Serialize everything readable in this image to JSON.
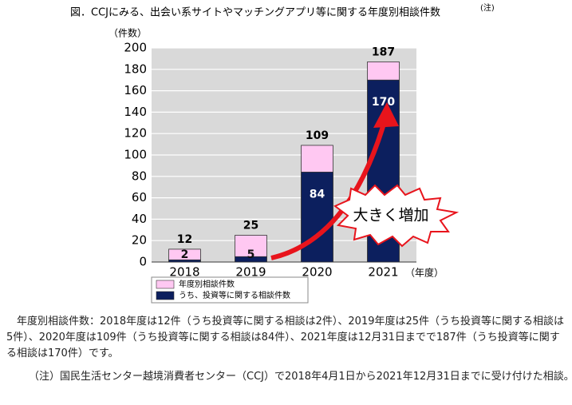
{
  "chart_data": {
    "type": "bar",
    "title": "図．CCJにみる、出会い系サイトやマッチングアプリ等に関する年度別相談件数",
    "title_note": "(注)",
    "y_label": "（件数）",
    "x_label": "（年度）",
    "categories": [
      "2018",
      "2019",
      "2020",
      "2021"
    ],
    "series": [
      {
        "name": "年度別相談件数",
        "color": "#ffc8f2",
        "values": [
          12,
          25,
          109,
          187
        ]
      },
      {
        "name": "うち、投資等に関する相談件数",
        "color": "#0c1f5e",
        "values": [
          2,
          5,
          84,
          170
        ]
      }
    ],
    "overlap": true,
    "ylim": [
      0,
      200
    ],
    "yticks": [
      0,
      20,
      40,
      60,
      80,
      100,
      120,
      140,
      160,
      180,
      200
    ],
    "grid": true,
    "annotation": "大きく増加",
    "description": "年度別相談件数：2018年度は12件（うち投資等に関する相談は2件）、2019年度は25件（うち投資等に関する相談は5件）、2020年度は109件（うち投資等に関する相談は84件）、2021年度は12月31日までで187件（うち投資等に関する相談は170件）です。",
    "note": "（注）国民生活センター越境消費者センター（CCJ）で2018年4月1日から2021年12月31日までに受け付けた相談。"
  }
}
